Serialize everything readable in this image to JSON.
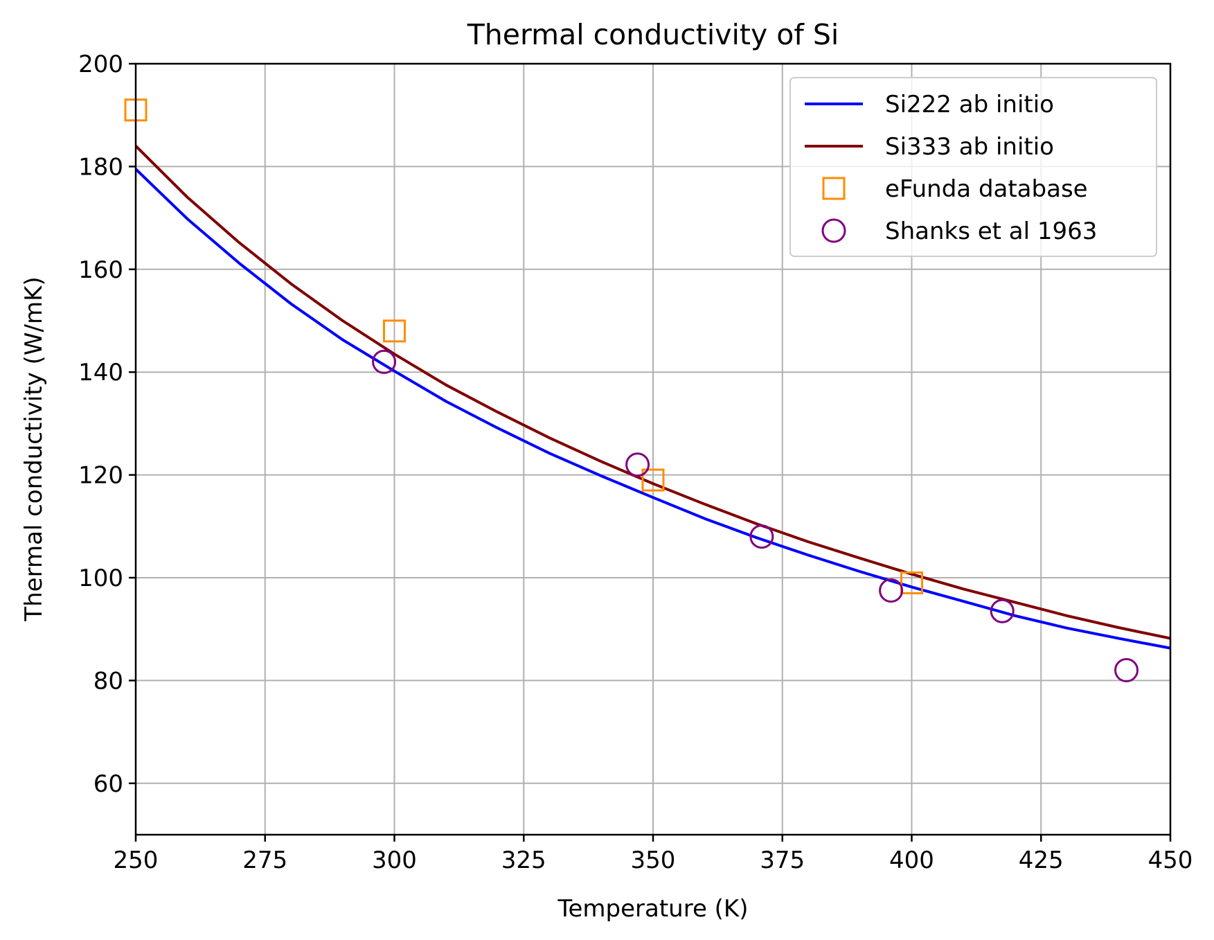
{
  "chart_data": {
    "type": "line",
    "title": "Thermal conductivity of Si",
    "xlabel": "Temperature (K)",
    "ylabel": "Thermal conductivity (W/mK)",
    "xlim": [
      250,
      450
    ],
    "ylim": [
      50,
      200
    ],
    "xticks": [
      250,
      275,
      300,
      325,
      350,
      375,
      400,
      425,
      450
    ],
    "yticks": [
      60,
      80,
      100,
      120,
      140,
      160,
      180,
      200
    ],
    "grid": true,
    "legend_position": "top-right",
    "series": [
      {
        "name": "Si222 ab initio",
        "kind": "line",
        "color": "#0000ff",
        "x": [
          250,
          260,
          270,
          280,
          290,
          300,
          310,
          320,
          330,
          340,
          350,
          360,
          370,
          380,
          390,
          400,
          410,
          420,
          430,
          440,
          450
        ],
        "y": [
          179.5,
          169.8,
          161.2,
          153.3,
          146.3,
          140.2,
          134.3,
          129.1,
          124.2,
          119.8,
          115.6,
          111.5,
          107.8,
          104.4,
          101.2,
          98.2,
          95.4,
          92.6,
          90.2,
          88.2,
          86.3
        ]
      },
      {
        "name": "Si333 ab initio",
        "kind": "line",
        "color": "#800000",
        "x": [
          250,
          260,
          270,
          280,
          290,
          300,
          310,
          320,
          330,
          340,
          350,
          360,
          370,
          380,
          390,
          400,
          410,
          420,
          430,
          440,
          450
        ],
        "y": [
          184.0,
          174.0,
          165.2,
          157.2,
          150.0,
          143.5,
          137.5,
          132.2,
          127.2,
          122.6,
          118.3,
          114.3,
          110.5,
          107.0,
          103.8,
          100.7,
          97.8,
          95.2,
          92.6,
          90.3,
          88.2
        ]
      },
      {
        "name": "eFunda database",
        "kind": "marker",
        "marker": "square",
        "color": "#ff8c00",
        "x": [
          250,
          300,
          350,
          400
        ],
        "y": [
          191,
          148,
          119,
          99
        ]
      },
      {
        "name": "Shanks et al 1963",
        "kind": "marker",
        "marker": "circle",
        "color": "#800080",
        "x": [
          298,
          347,
          371,
          396,
          417.5,
          441.5
        ],
        "y": [
          142,
          122,
          108,
          97.5,
          93.5,
          82
        ]
      }
    ]
  }
}
